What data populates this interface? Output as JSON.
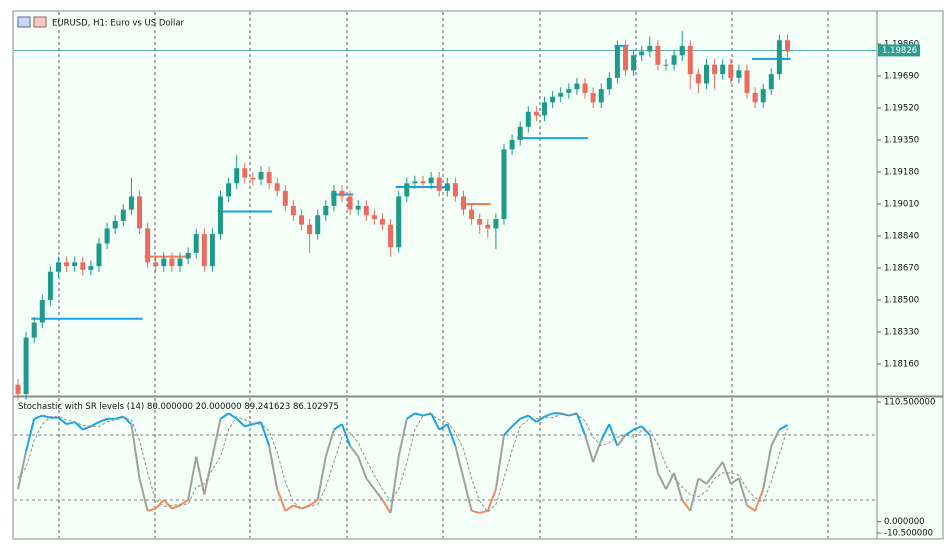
{
  "chart_data": [
    {
      "type": "candlestick",
      "title": "EURUSD, H1:  Euro vs US Dollar",
      "open": [
        1.1805,
        1.18,
        1.183,
        1.1838,
        1.185,
        1.1865,
        1.187,
        1.1868,
        1.187,
        1.1866,
        1.1868,
        1.188,
        1.1888,
        1.1892,
        1.1898,
        1.1905,
        1.1888,
        1.187,
        1.1868,
        1.1872,
        1.1868,
        1.1872,
        1.1875,
        1.1885,
        1.1868,
        1.1885,
        1.1905,
        1.1912,
        1.192,
        1.1915,
        1.1914,
        1.1918,
        1.1912,
        1.1908,
        1.19,
        1.1895,
        1.189,
        1.1885,
        1.1895,
        1.19,
        1.1908,
        1.1905,
        1.1898,
        1.19,
        1.1895,
        1.1893,
        1.189,
        1.1878,
        1.1905,
        1.1912,
        1.1913,
        1.1912,
        1.1915,
        1.1908,
        1.1912,
        1.1905,
        1.1898,
        1.1893,
        1.189,
        1.1888,
        1.1893,
        1.193,
        1.1935,
        1.1942,
        1.195,
        1.1948,
        1.1955,
        1.1958,
        1.196,
        1.1962,
        1.1965,
        1.196,
        1.1955,
        1.1962,
        1.1968,
        1.1985,
        1.1972,
        1.198,
        1.1982,
        1.1985,
        1.1975,
        1.1975,
        1.198,
        1.1985,
        1.197,
        1.1965,
        1.1975,
        1.197,
        1.1975,
        1.1968,
        1.1972,
        1.196,
        1.1955,
        1.1962,
        1.197,
        1.1988
      ],
      "high": [
        1.1808,
        1.1833,
        1.1841,
        1.1853,
        1.1868,
        1.1873,
        1.1873,
        1.1873,
        1.1873,
        1.1871,
        1.1883,
        1.1891,
        1.1895,
        1.1901,
        1.1915,
        1.1908,
        1.1891,
        1.1873,
        1.1875,
        1.1875,
        1.1875,
        1.1878,
        1.1888,
        1.1888,
        1.1888,
        1.1908,
        1.1915,
        1.1927,
        1.1923,
        1.1918,
        1.1921,
        1.1921,
        1.1915,
        1.1911,
        1.1903,
        1.1898,
        1.1893,
        1.1898,
        1.1903,
        1.1911,
        1.1911,
        1.1908,
        1.1903,
        1.1903,
        1.1898,
        1.1896,
        1.1893,
        1.1908,
        1.1915,
        1.1916,
        1.1916,
        1.1918,
        1.1918,
        1.1915,
        1.1915,
        1.1908,
        1.1901,
        1.1896,
        1.1893,
        1.1896,
        1.1933,
        1.1938,
        1.1945,
        1.1953,
        1.1953,
        1.1958,
        1.1961,
        1.1963,
        1.1965,
        1.1968,
        1.1968,
        1.1963,
        1.1965,
        1.1971,
        1.1988,
        1.1988,
        1.1983,
        1.1985,
        1.199,
        1.1988,
        1.1978,
        1.1983,
        1.1993,
        1.1988,
        1.1973,
        1.1978,
        1.1978,
        1.1978,
        1.1978,
        1.1975,
        1.1975,
        1.1963,
        1.1965,
        1.1973,
        1.1991,
        1.1991
      ],
      "low": [
        1.1797,
        1.1797,
        1.1827,
        1.1835,
        1.1847,
        1.1862,
        1.1865,
        1.1865,
        1.1863,
        1.1863,
        1.1865,
        1.1877,
        1.1885,
        1.1889,
        1.1895,
        1.1885,
        1.1867,
        1.1865,
        1.1865,
        1.1865,
        1.1865,
        1.1869,
        1.1872,
        1.1865,
        1.1865,
        1.1882,
        1.1902,
        1.1909,
        1.1912,
        1.1911,
        1.1911,
        1.1909,
        1.1905,
        1.1897,
        1.1892,
        1.1887,
        1.1875,
        1.1882,
        1.1892,
        1.1897,
        1.1902,
        1.1895,
        1.1895,
        1.1892,
        1.189,
        1.1887,
        1.1873,
        1.1875,
        1.1902,
        1.1909,
        1.1909,
        1.1909,
        1.1905,
        1.1905,
        1.1902,
        1.1895,
        1.189,
        1.1885,
        1.1883,
        1.1877,
        1.189,
        1.1927,
        1.1932,
        1.1939,
        1.1945,
        1.1945,
        1.1952,
        1.1955,
        1.1957,
        1.1959,
        1.1957,
        1.1952,
        1.1952,
        1.1959,
        1.1965,
        1.1969,
        1.1969,
        1.1977,
        1.1979,
        1.1972,
        1.1972,
        1.1972,
        1.1977,
        1.1962,
        1.196,
        1.1962,
        1.1962,
        1.1967,
        1.1965,
        1.1965,
        1.1957,
        1.1952,
        1.1952,
        1.1959,
        1.1967,
        1.1979
      ],
      "close": [
        1.18,
        1.183,
        1.1838,
        1.185,
        1.1865,
        1.187,
        1.1868,
        1.187,
        1.1866,
        1.1868,
        1.188,
        1.1888,
        1.1892,
        1.1898,
        1.1905,
        1.1888,
        1.187,
        1.1868,
        1.1872,
        1.1868,
        1.1872,
        1.1875,
        1.1885,
        1.1868,
        1.1885,
        1.1905,
        1.1912,
        1.192,
        1.1915,
        1.1914,
        1.1918,
        1.1912,
        1.1908,
        1.19,
        1.1895,
        1.189,
        1.1885,
        1.1895,
        1.19,
        1.1908,
        1.1905,
        1.1898,
        1.19,
        1.1895,
        1.1893,
        1.189,
        1.1878,
        1.1905,
        1.1912,
        1.1913,
        1.1912,
        1.1915,
        1.1908,
        1.1912,
        1.1905,
        1.1898,
        1.1893,
        1.189,
        1.1888,
        1.1893,
        1.193,
        1.1935,
        1.1942,
        1.195,
        1.1948,
        1.1955,
        1.1958,
        1.196,
        1.1962,
        1.1965,
        1.196,
        1.1955,
        1.1962,
        1.1968,
        1.1985,
        1.1972,
        1.198,
        1.1982,
        1.1985,
        1.1975,
        1.1975,
        1.198,
        1.1985,
        1.197,
        1.1965,
        1.1975,
        1.197,
        1.1975,
        1.1968,
        1.1972,
        1.196,
        1.1955,
        1.1962,
        1.197,
        1.1988,
        1.1982
      ],
      "up_color": "#1f9a8a",
      "down_color": "#ee6a5e",
      "ylim": [
        1.17995,
        1.2003
      ],
      "yticks": [
        {
          "value": 1.1816,
          "label": "1.18160"
        },
        {
          "value": 1.1833,
          "label": "1.18330"
        },
        {
          "value": 1.185,
          "label": "1.18500"
        },
        {
          "value": 1.1867,
          "label": "1.18670"
        },
        {
          "value": 1.1884,
          "label": "1.18840"
        },
        {
          "value": 1.1901,
          "label": "1.19010"
        },
        {
          "value": 1.1918,
          "label": "1.19180"
        },
        {
          "value": 1.1935,
          "label": "1.19350"
        },
        {
          "value": 1.1952,
          "label": "1.19520"
        },
        {
          "value": 1.1969,
          "label": "1.19690"
        },
        {
          "value": 1.1986,
          "label": "1.19860"
        }
      ],
      "current_price": 1.19826,
      "current_color": "#2e9b8f",
      "support_resistance": [
        {
          "value": 1.184,
          "start": 2,
          "end": 15,
          "color": "#1aa3e8"
        },
        {
          "value": 1.1873,
          "start": 16,
          "end": 21,
          "color": "#f08050"
        },
        {
          "value": 1.1897,
          "start": 25,
          "end": 31,
          "color": "#1aa3e8"
        },
        {
          "value": 1.1906,
          "start": 39,
          "end": 41,
          "color": "#1aa3e8"
        },
        {
          "value": 1.191,
          "start": 47,
          "end": 53,
          "color": "#1aa3e8"
        },
        {
          "value": 1.1901,
          "start": 55,
          "end": 58,
          "color": "#f08050"
        },
        {
          "value": 1.1936,
          "start": 62,
          "end": 70,
          "color": "#1aa3e8"
        },
        {
          "value": 1.1985,
          "start": 74,
          "end": 75,
          "color": "#1aa3e8"
        },
        {
          "value": 1.1978,
          "start": 91,
          "end": 95,
          "color": "#1aa3e8"
        }
      ]
    },
    {
      "type": "line",
      "title": "Stochastic with SR levels (14)",
      "levels": [
        {
          "value": 80,
          "label": "80.000000"
        },
        {
          "value": 20,
          "label": "20.000000"
        }
      ],
      "series": [
        {
          "values": [
            30,
            65,
            95,
            98,
            96,
            96,
            90,
            92,
            85,
            88,
            92,
            95,
            95,
            97,
            90,
            40,
            10,
            12,
            20,
            12,
            15,
            20,
            60,
            25,
            60,
            95,
            100,
            95,
            88,
            90,
            92,
            70,
            30,
            10,
            15,
            12,
            15,
            20,
            60,
            85,
            90,
            70,
            60,
            40,
            30,
            20,
            8,
            60,
            95,
            100,
            98,
            100,
            85,
            90,
            70,
            40,
            10,
            8,
            10,
            30,
            80,
            88,
            95,
            98,
            92,
            97,
            100,
            100,
            98,
            100,
            80,
            55,
            75,
            90,
            70,
            80,
            85,
            88,
            80,
            45,
            30,
            45,
            20,
            10,
            40,
            35,
            45,
            55,
            35,
            40,
            15,
            10,
            30,
            70,
            85,
            89.241623
          ],
          "color": "#a0a0a0",
          "high_color": "#1aa3e8",
          "low_color": "#f08a60"
        },
        {
          "values": [
            40,
            50,
            75,
            90,
            97,
            97,
            94,
            92,
            89,
            88,
            88,
            92,
            94,
            96,
            94,
            75,
            45,
            20,
            14,
            15,
            16,
            16,
            32,
            35,
            48,
            60,
            85,
            97,
            94,
            91,
            90,
            84,
            64,
            37,
            18,
            12,
            14,
            16,
            32,
            55,
            78,
            82,
            73,
            57,
            43,
            30,
            19,
            30,
            54,
            85,
            98,
            99,
            94,
            92,
            82,
            67,
            40,
            19,
            9,
            16,
            40,
            66,
            88,
            94,
            95,
            96,
            96,
            99,
            99,
            99,
            93,
            78,
            70,
            73,
            78,
            80,
            78,
            84,
            84,
            71,
            52,
            40,
            32,
            25,
            23,
            28,
            40,
            45,
            45,
            43,
            30,
            22,
            18,
            37,
            62,
            86.102975
          ],
          "color": "#909090",
          "dashed": true
        }
      ],
      "ylim": [
        -10.5,
        110.5
      ],
      "yticks": [
        {
          "value": 110.5,
          "label": "110.500000"
        },
        {
          "value": 0,
          "label": "0.000000"
        },
        {
          "value": -10.5,
          "label": "-10.500000"
        }
      ]
    }
  ]
}
